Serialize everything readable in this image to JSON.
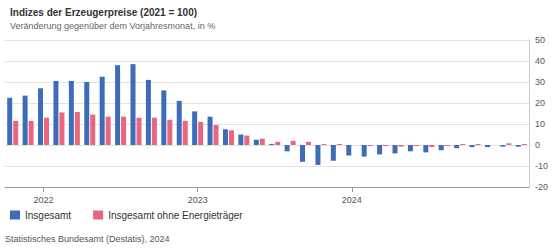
{
  "chart_data": {
    "type": "bar",
    "title": "Indizes der Erzeugerpreise (2021 = 100)",
    "subtitle": "Veränderung gegenüber dem Vorjahresmonat, in %",
    "source": "Statistisches Bundesamt (Destatis), 2024",
    "categories": [
      null,
      null,
      "2022",
      null,
      null,
      null,
      null,
      null,
      null,
      null,
      null,
      null,
      "2023",
      null,
      null,
      null,
      null,
      null,
      null,
      null,
      null,
      null,
      "2024",
      null,
      null,
      null,
      null,
      null,
      null,
      null,
      null,
      null,
      null,
      null
    ],
    "series": [
      {
        "name": "Insgesamt",
        "color": "#3d6cb9",
        "values": [
          22.5,
          23.5,
          27,
          30.5,
          30.5,
          30,
          32.5,
          38,
          38.5,
          31,
          26,
          21,
          16,
          13.5,
          7.5,
          5,
          2.5,
          0.5,
          -3,
          -8,
          -9.5,
          -7.5,
          -5,
          -5.5,
          -4.5,
          -4,
          -3,
          -3.5,
          -2.5,
          -1.5,
          -1,
          -1,
          -0.8,
          -0.8
        ]
      },
      {
        "name": "Insgesamt ohne Energieträger",
        "color": "#e8677f",
        "values": [
          11.5,
          11.5,
          13,
          15.5,
          15.7,
          14.5,
          13.5,
          13.5,
          13,
          13,
          12,
          11.5,
          11,
          9.5,
          7,
          4.5,
          3,
          1.5,
          2,
          1.5,
          0.5,
          0.5,
          0,
          -0.5,
          -0.5,
          -0.8,
          -0.5,
          -1,
          -0.5,
          0.5,
          0.5,
          0,
          0.8,
          0.5
        ]
      }
    ],
    "ylim": [
      -20,
      50
    ],
    "yticks": [
      -20,
      -10,
      0,
      10,
      20,
      30,
      40,
      50
    ],
    "grid": true,
    "legend": "bottom-left"
  }
}
